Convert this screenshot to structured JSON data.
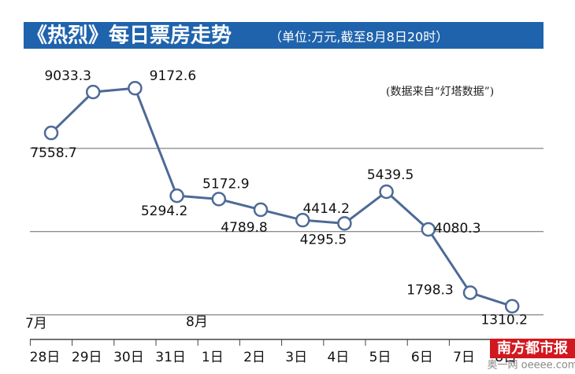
{
  "chart_data": {
    "type": "line",
    "title": "《热烈》每日票房走势",
    "subtitle": "（单位:万元,截至8月8日20时）",
    "source_note": "(数据来自“灯塔数据”)",
    "months": [
      "7月",
      "8月"
    ],
    "categories": [
      "28日",
      "29日",
      "30日",
      "31日",
      "1日",
      "2日",
      "3日",
      "4日",
      "5日",
      "6日",
      "7日",
      "8日"
    ],
    "series": [
      {
        "name": "每日票房",
        "color": "#4d6a96",
        "values": [
          7558.7,
          9033.3,
          9172.6,
          5294.2,
          5172.9,
          4789.8,
          4414.2,
          4295.5,
          5439.5,
          4080.3,
          1798.3,
          1310.2
        ]
      }
    ],
    "ylim": [
      0,
      10000
    ],
    "yticks": [
      1000,
      4000,
      7000
    ],
    "grid": true,
    "watermark": {
      "name": "南方都市报",
      "site": "奥一网 oeeee.com"
    }
  }
}
